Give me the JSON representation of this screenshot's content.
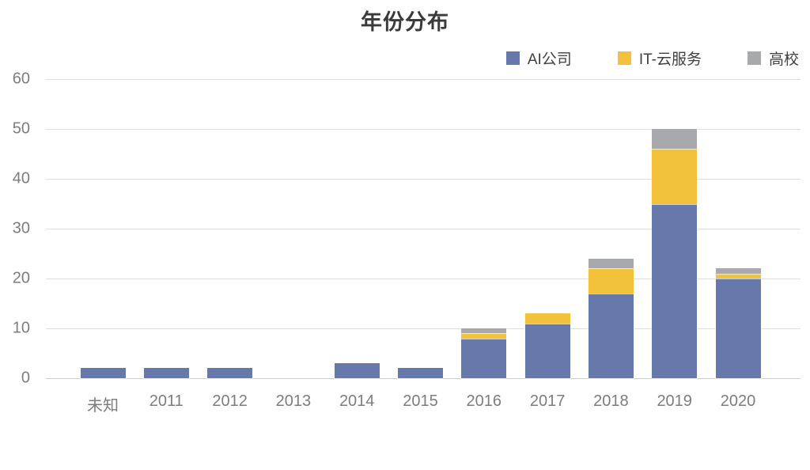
{
  "chart_data": {
    "type": "bar",
    "stacked": true,
    "title": "年份分布",
    "categories": [
      "未知",
      "2011",
      "2012",
      "2013",
      "2014",
      "2015",
      "2016",
      "2017",
      "2018",
      "2019",
      "2020"
    ],
    "series": [
      {
        "name": "AI公司",
        "color": "#6679AA",
        "values": [
          2,
          2,
          2,
          0,
          3,
          2,
          8,
          11,
          17,
          35,
          20
        ]
      },
      {
        "name": "IT-云服务",
        "color": "#F2C23D",
        "values": [
          0,
          0,
          0,
          0,
          0,
          0,
          1,
          2,
          5,
          11,
          1
        ]
      },
      {
        "name": "高校",
        "color": "#A7A9AC",
        "values": [
          0,
          0,
          0,
          0,
          0,
          0,
          1,
          0,
          2,
          4,
          1
        ]
      }
    ],
    "xlabel": "",
    "ylabel": "",
    "ylim": [
      0,
      60
    ],
    "yticks": [
      0,
      10,
      20,
      30,
      40,
      50,
      60
    ],
    "grid": true,
    "legend_position": "top-right"
  },
  "colors": {
    "background": "#FFFFFF",
    "title_text": "#3A3A3A",
    "tick_text": "#7D7D7D",
    "legend_text": "#404040",
    "gridline": "#DDDDDD"
  }
}
